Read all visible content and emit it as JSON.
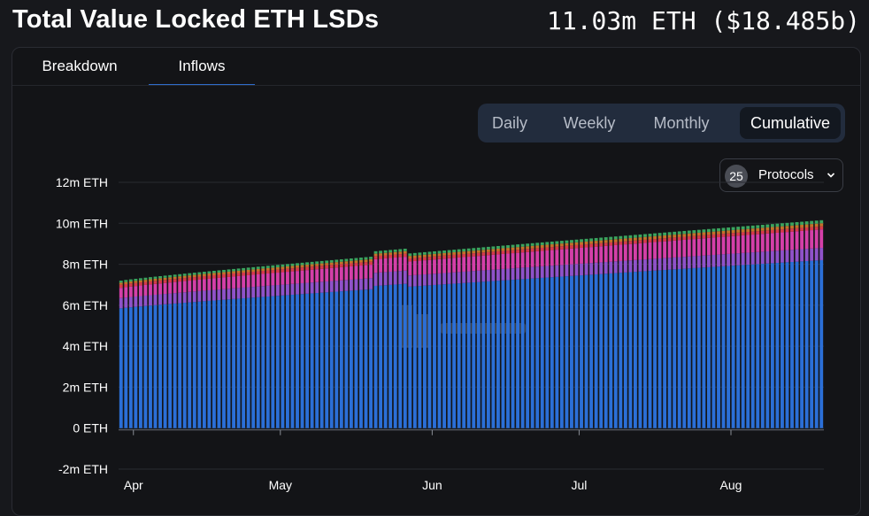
{
  "header": {
    "title": "Total Value Locked ETH LSDs",
    "total": "11.03m ETH ($18.485b)"
  },
  "tabs": [
    {
      "label": "Breakdown",
      "active": false
    },
    {
      "label": "Inflows",
      "active": true
    }
  ],
  "range": {
    "options": [
      "Daily",
      "Weekly",
      "Monthly",
      "Cumulative"
    ],
    "selected": "Cumulative"
  },
  "protocols": {
    "count": "25",
    "label": "Protocols"
  },
  "colors": {
    "series": [
      "#2b6fd7",
      "#8f52c9",
      "#d43fa8",
      "#d63a4b",
      "#c4712a",
      "#3aa55e"
    ]
  },
  "chart_data": {
    "type": "bar",
    "stacked": true,
    "grid": true,
    "ylim": [
      -2000000,
      12000000
    ],
    "yticks": [
      "12m ETH",
      "10m ETH",
      "8m ETH",
      "6m ETH",
      "4m ETH",
      "2m ETH",
      "0 ETH",
      "-2m ETH"
    ],
    "ytick_values": [
      12000000,
      10000000,
      8000000,
      6000000,
      4000000,
      2000000,
      0,
      -2000000
    ],
    "x_labels": [
      "Apr",
      "May",
      "Jun",
      "Jul",
      "Aug"
    ],
    "x_range": [
      "2023-04-01",
      "2023-08-22"
    ],
    "total_start": 7200000,
    "total_end": 10150000,
    "series_bands": [
      {
        "start": 5850000,
        "end": 8200000
      },
      {
        "start": 6350000,
        "end": 8800000
      },
      {
        "start": 6850000,
        "end": 9700000
      },
      {
        "start": 7000000,
        "end": 9850000
      },
      {
        "start": 7100000,
        "end": 10000000
      },
      {
        "start": 7200000,
        "end": 10150000
      }
    ]
  }
}
